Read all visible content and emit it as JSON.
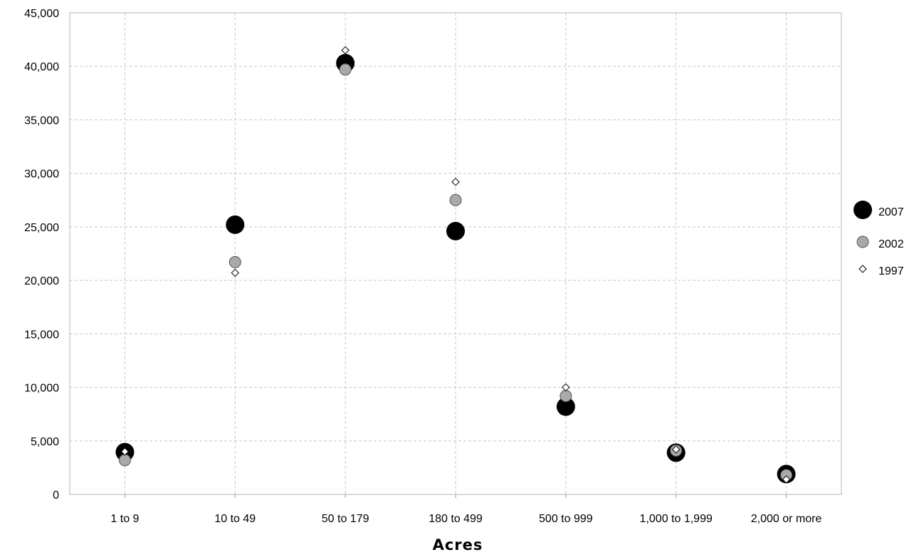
{
  "chart_data": {
    "type": "scatter",
    "title": "",
    "xlabel": "Acres",
    "ylabel": "",
    "categories": [
      "1  to 9",
      "10 to 49",
      "50 to 179",
      "180 to 499",
      "500 to 999",
      "1,000 to 1,999",
      "2,000 or more"
    ],
    "ylim": [
      0,
      45000
    ],
    "yticks": [
      0,
      5000,
      10000,
      15000,
      20000,
      25000,
      30000,
      35000,
      40000,
      45000
    ],
    "ytick_labels": [
      "0",
      "5,000",
      "10,000",
      "15,000",
      "20,000",
      "25,000",
      "30,000",
      "35,000",
      "40,000",
      "45,000"
    ],
    "grid": true,
    "legend_position": "right",
    "series": [
      {
        "name": "2007",
        "marker": "large-circle",
        "color": "#000000",
        "values": [
          3950,
          25200,
          40300,
          24600,
          8200,
          3900,
          1900
        ]
      },
      {
        "name": "2002",
        "marker": "circle",
        "color": "#a9a9a9",
        "values": [
          3200,
          21700,
          39700,
          27500,
          9200,
          4100,
          1800
        ]
      },
      {
        "name": "1997",
        "marker": "diamond",
        "color": "#ffffff",
        "values": [
          4000,
          20700,
          41500,
          29200,
          10000,
          4200,
          1400
        ]
      }
    ]
  }
}
